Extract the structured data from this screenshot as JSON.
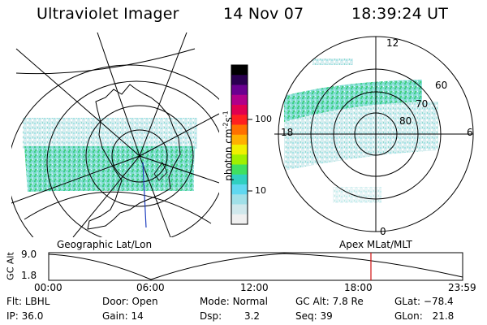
{
  "header": {
    "instrument": "Ultraviolet Imager",
    "date": "14 Nov 07",
    "time": "18:39:24 UT"
  },
  "colorbar": {
    "unit_label": "photon cm",
    "unit_exp1": "-2",
    "unit_s": "s",
    "unit_exp2": "-1",
    "ticks": [
      "100",
      "10"
    ],
    "colors": [
      "#000000",
      "#2a0050",
      "#6a0090",
      "#b0008a",
      "#e00050",
      "#ff2020",
      "#ff7000",
      "#ffb000",
      "#f0f000",
      "#a0f000",
      "#40e060",
      "#30d0c0",
      "#60d8f0",
      "#a0e0e8",
      "#d0e8ec",
      "#f0f0f0"
    ]
  },
  "left_map": {
    "title": "Geographic Lat/Lon"
  },
  "right_map": {
    "title": "Apex MLat/MLT",
    "mlt_labels": {
      "top": "12",
      "left": "18",
      "right": "6",
      "bottom": "0"
    },
    "lat_labels": [
      "60",
      "70",
      "80"
    ]
  },
  "altitude_plot": {
    "ylabel": "GC Alt",
    "yticks": [
      "9.0",
      "1.8"
    ],
    "xticks": [
      "00:00",
      "06:00",
      "12:00",
      "18:00",
      "23:59"
    ],
    "current_time_marker": "18:39"
  },
  "footer": {
    "flt_label": "Flt:",
    "flt_value": "LBHL",
    "ip_label": "IP:",
    "ip_value": "36.0",
    "door_label": "Door:",
    "door_value": "Open",
    "gain_label": "Gain:",
    "gain_value": "14",
    "mode_label": "Mode:",
    "mode_value": "Normal",
    "dsp_label": "Dsp:",
    "dsp_value": "3.2",
    "gcalt_label": "GC Alt:",
    "gcalt_value": "7.8 Re",
    "seq_label": "Seq:",
    "seq_value": "39",
    "glat_label": "GLat:",
    "glat_value": "−78.4",
    "glon_label": "GLon:",
    "glon_value": "21.8"
  }
}
